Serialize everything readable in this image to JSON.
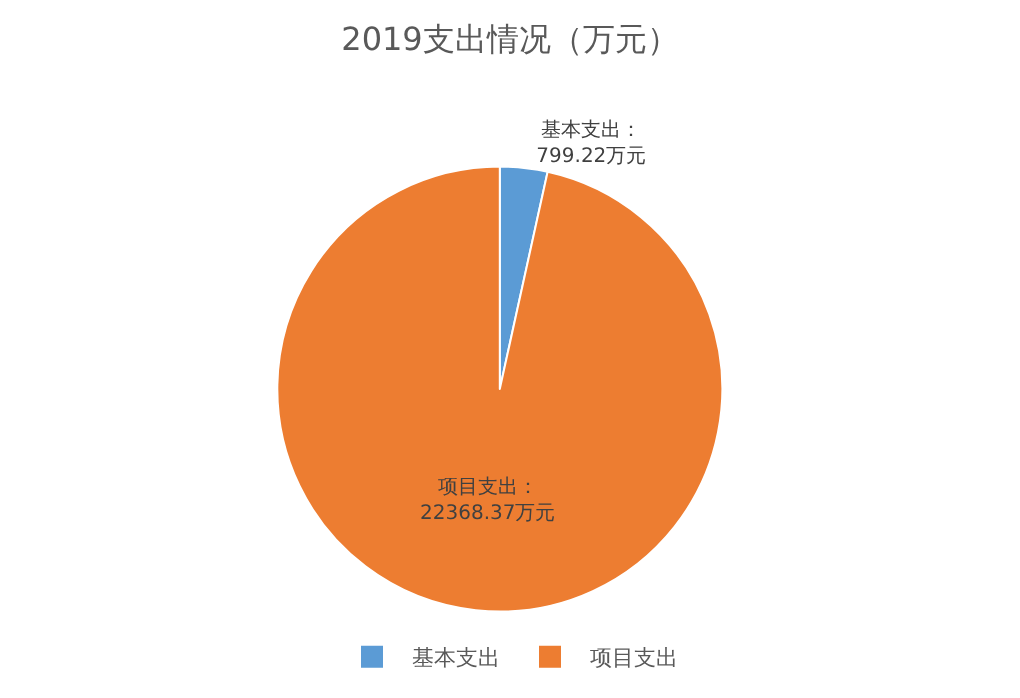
{
  "chart_data": {
    "type": "pie",
    "title": "2019支出情况（万元）",
    "categories": [
      "基本支出",
      "项目支出"
    ],
    "values": [
      799.22,
      22368.37
    ],
    "colors": [
      "#5b9bd5",
      "#ed7d31"
    ],
    "value_labels": [
      "基本支出：\n799.22万元",
      "项目支出：\n22368.37万元"
    ],
    "legend": "bottom"
  }
}
